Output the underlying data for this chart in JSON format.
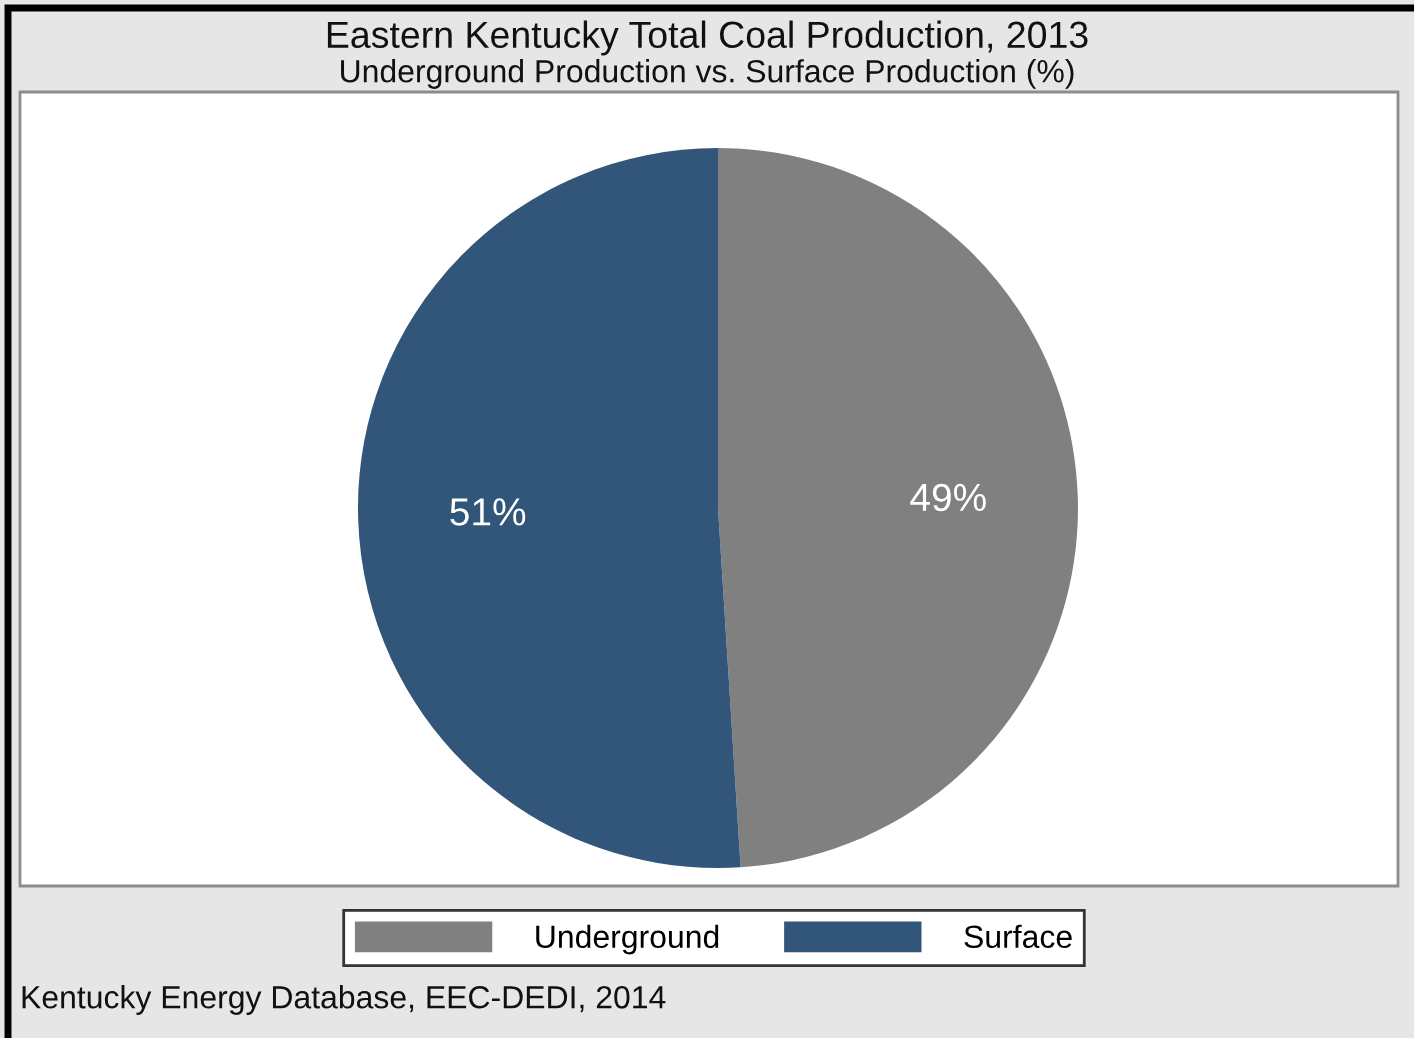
{
  "chart_data": {
    "type": "pie",
    "title": "Eastern Kentucky Total Coal Production, 2013",
    "subtitle": "Underground Production vs. Surface Production (%)",
    "categories": [
      "Underground",
      "Surface"
    ],
    "values": [
      49,
      51
    ],
    "colors": [
      "#808080",
      "#31567a"
    ],
    "value_labels": [
      "49%",
      "51%"
    ],
    "legend": "bottom",
    "annotations": [
      "Kentucky Energy Database, EEC-DEDI, 2014"
    ]
  }
}
